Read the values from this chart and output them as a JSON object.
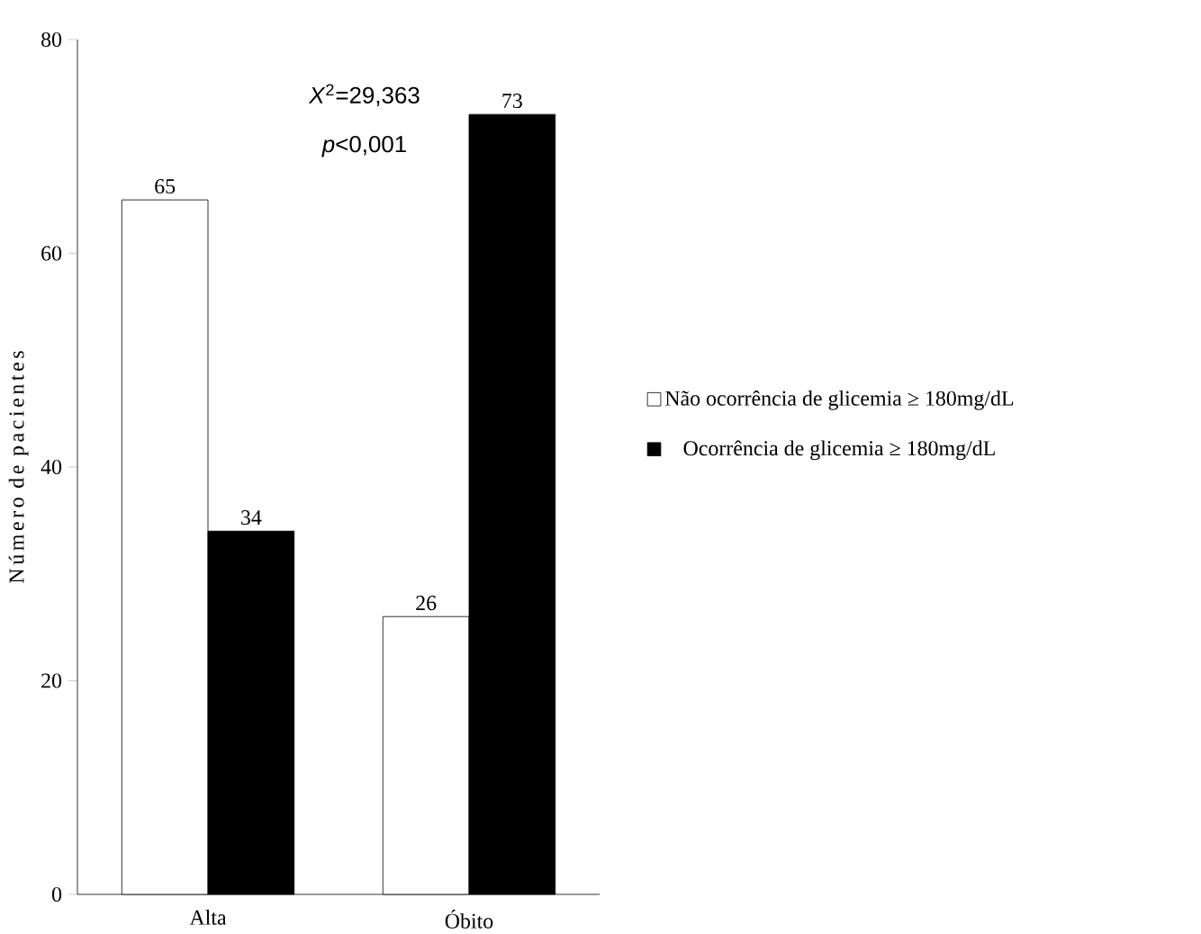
{
  "chart_data": {
    "type": "bar",
    "ylabel": "Número de pacientes",
    "categories": [
      "Alta",
      "Óbito"
    ],
    "series": [
      {
        "name": "Não ocorrência de glicemia ≥ 180mg/dL",
        "color": "#ffffff",
        "values": [
          65,
          26
        ]
      },
      {
        "name": "Ocorrência de glicemia ≥ 180mg/dL",
        "color": "#000000",
        "values": [
          34,
          73
        ]
      }
    ],
    "ylim": [
      0,
      80
    ],
    "yticks": [
      0,
      20,
      40,
      60,
      80
    ],
    "data_labels": true,
    "legend": "right",
    "grid": false,
    "annotations": [
      "*X*$^{2}$=29,363",
      "*p*<0,001"
    ]
  }
}
